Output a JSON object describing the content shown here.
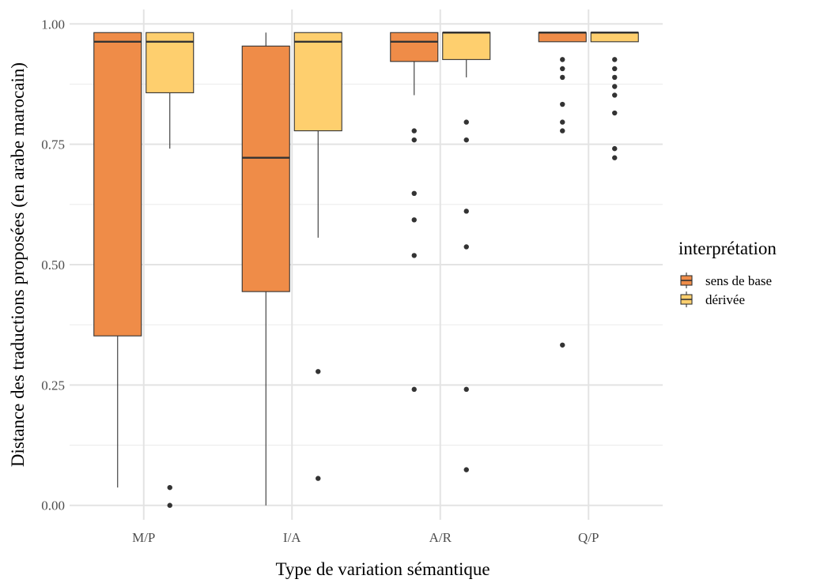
{
  "chart_data": {
    "type": "boxplot",
    "xlabel": "Type de variation sémantique",
    "ylabel": "Distance des traductions proposées (en arabe marocain)",
    "ylim": [
      -0.03,
      1.03
    ],
    "yticks": [
      0.0,
      0.25,
      0.5,
      0.75,
      1.0
    ],
    "ytick_labels": [
      "0.00",
      "0.25",
      "0.50",
      "0.75",
      "1.00"
    ],
    "categories": [
      "M/P",
      "I/A",
      "A/R",
      "Q/P"
    ],
    "grid": true,
    "legend": {
      "title": "interprétation",
      "position": "right"
    },
    "series": [
      {
        "name": "sens de base",
        "color": "#ef8c48",
        "boxes": [
          {
            "category": "M/P",
            "whisker_low": 0.037,
            "q1": 0.352,
            "median": 0.963,
            "q3": 0.982,
            "whisker_high": 0.982,
            "outliers": []
          },
          {
            "category": "I/A",
            "whisker_low": 0.0,
            "q1": 0.444,
            "median": 0.722,
            "q3": 0.954,
            "whisker_high": 0.982,
            "outliers": []
          },
          {
            "category": "A/R",
            "whisker_low": 0.852,
            "q1": 0.922,
            "median": 0.963,
            "q3": 0.982,
            "whisker_high": 0.982,
            "outliers": [
              0.778,
              0.759,
              0.648,
              0.593,
              0.519,
              0.241
            ]
          },
          {
            "category": "Q/P",
            "whisker_low": 0.963,
            "q1": 0.963,
            "median": 0.982,
            "q3": 0.982,
            "whisker_high": 0.982,
            "outliers": [
              0.926,
              0.907,
              0.889,
              0.833,
              0.796,
              0.778,
              0.333
            ]
          }
        ]
      },
      {
        "name": "dérivée",
        "color": "#fecf6e",
        "boxes": [
          {
            "category": "M/P",
            "whisker_low": 0.741,
            "q1": 0.857,
            "median": 0.963,
            "q3": 0.982,
            "whisker_high": 0.982,
            "outliers": [
              0.037,
              0.0
            ]
          },
          {
            "category": "I/A",
            "whisker_low": 0.556,
            "q1": 0.778,
            "median": 0.963,
            "q3": 0.982,
            "whisker_high": 0.982,
            "outliers": [
              0.278,
              0.056
            ]
          },
          {
            "category": "A/R",
            "whisker_low": 0.889,
            "q1": 0.926,
            "median": 0.982,
            "q3": 0.982,
            "whisker_high": 0.982,
            "outliers": [
              0.796,
              0.759,
              0.611,
              0.537,
              0.241,
              0.074
            ]
          },
          {
            "category": "Q/P",
            "whisker_low": 0.963,
            "q1": 0.963,
            "median": 0.982,
            "q3": 0.982,
            "whisker_high": 0.982,
            "outliers": [
              0.926,
              0.907,
              0.889,
              0.87,
              0.852,
              0.815,
              0.741,
              0.722
            ]
          }
        ]
      }
    ]
  }
}
